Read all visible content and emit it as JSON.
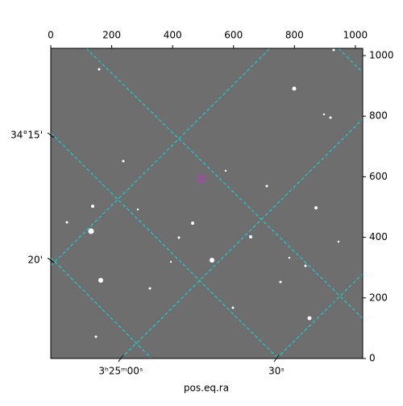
{
  "chart_data": {
    "type": "image",
    "xlabel": "pos.eq.ra",
    "xlim": [
      0,
      1024
    ],
    "ylim": [
      0,
      1024
    ],
    "xticks": [
      0,
      200,
      400,
      600,
      800,
      1000
    ],
    "yticks": [
      0,
      200,
      400,
      600,
      800,
      1000
    ],
    "ra_ticks": [
      {
        "value": 230,
        "label": "3ʰ25ᵐ00ˢ"
      },
      {
        "value": 741,
        "label": "30ˢ"
      }
    ],
    "dec_ticks": [
      {
        "value": 737,
        "label": "34°15'"
      },
      {
        "value": 324,
        "label": "20'"
      }
    ],
    "marker": {
      "x": 495,
      "y": 593,
      "color": "#cc33cc"
    },
    "grid_color": "#00e5e5"
  }
}
